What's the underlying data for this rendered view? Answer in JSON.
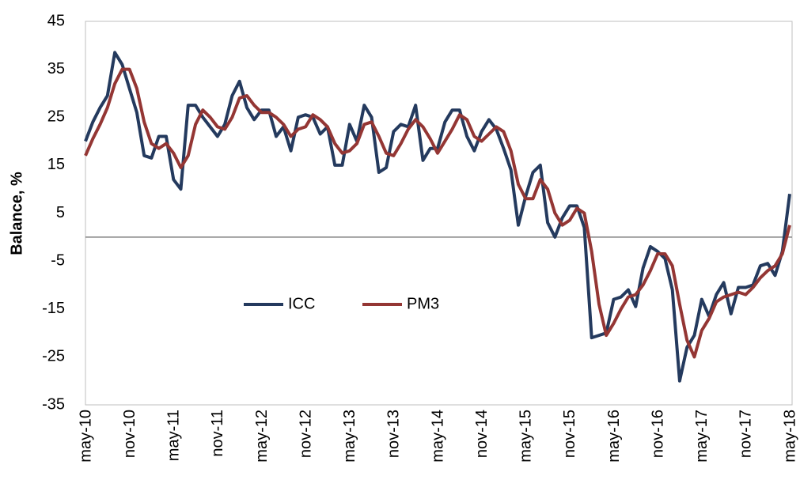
{
  "chart_data": {
    "type": "line",
    "y_label": "Balance, %",
    "categories": [
      "may-10",
      null,
      null,
      null,
      null,
      null,
      "nov-10",
      null,
      null,
      null,
      null,
      null,
      "may-11",
      null,
      null,
      null,
      null,
      null,
      "nov-11",
      null,
      null,
      null,
      null,
      null,
      "may-12",
      null,
      null,
      null,
      null,
      null,
      "nov-12",
      null,
      null,
      null,
      null,
      null,
      "may-13",
      null,
      null,
      null,
      null,
      null,
      "nov-13",
      null,
      null,
      null,
      null,
      null,
      "may-14",
      null,
      null,
      null,
      null,
      null,
      "nov-14",
      null,
      null,
      null,
      null,
      null,
      "may-15",
      null,
      null,
      null,
      null,
      null,
      "nov-15",
      null,
      null,
      null,
      null,
      null,
      "may-16",
      null,
      null,
      null,
      null,
      null,
      "nov-16",
      null,
      null,
      null,
      null,
      null,
      "may-17",
      null,
      null,
      null,
      null,
      null,
      "nov-17",
      null,
      null,
      null,
      null,
      null,
      "may-18"
    ],
    "series": [
      {
        "name": "ICC",
        "color": "#243a5e",
        "values": [
          20,
          24,
          27,
          29.5,
          38.5,
          36,
          31,
          26,
          17,
          16.5,
          21,
          21,
          12,
          10,
          27.5,
          27.5,
          25,
          23,
          21,
          23.5,
          29.5,
          32.5,
          27,
          24.5,
          26.5,
          26.5,
          21,
          23,
          18,
          25,
          25.5,
          25,
          21.5,
          23,
          15,
          15,
          23.5,
          20,
          27.5,
          25,
          13.5,
          14.5,
          22,
          23.5,
          23,
          27.5,
          16,
          18.5,
          18.5,
          24,
          26.5,
          26.5,
          21,
          18,
          22,
          24.5,
          22.5,
          18.5,
          14,
          2.5,
          8.5,
          13.5,
          15,
          3,
          0,
          4,
          6.5,
          6.5,
          2,
          -21,
          -20.5,
          -20,
          -13,
          -12.5,
          -11,
          -14.5,
          -6.5,
          -2,
          -3,
          -4.5,
          -11,
          -30,
          -23,
          -20.5,
          -13,
          -16.5,
          -12,
          -9.5,
          -16,
          -10.5,
          -10.5,
          -10,
          -6,
          -5.5,
          -8,
          -3,
          9
        ]
      },
      {
        "name": "PM3",
        "color": "#943634",
        "values": [
          17,
          20.5,
          23.5,
          27,
          32,
          35,
          35,
          31,
          24,
          19.5,
          18.5,
          19.5,
          17.5,
          14.5,
          17,
          23.5,
          26.5,
          25,
          23,
          22.5,
          25,
          29,
          29.5,
          27.5,
          26,
          26,
          25,
          23.5,
          21,
          22.5,
          23,
          25.5,
          24.5,
          23,
          19.5,
          17.5,
          18,
          19.5,
          23.5,
          24,
          21,
          17.5,
          17,
          19.5,
          22.5,
          24.5,
          23,
          20.5,
          17.5,
          20,
          22.5,
          25.5,
          24.5,
          21,
          20,
          21.5,
          23,
          22,
          18,
          11,
          8,
          8,
          12,
          10,
          5,
          2.5,
          3.5,
          6,
          5,
          -3,
          -14,
          -20.5,
          -18,
          -15,
          -12.5,
          -12,
          -10,
          -7,
          -3.5,
          -3.5,
          -6,
          -14,
          -21.5,
          -25,
          -19.5,
          -17,
          -13.5,
          -12.5,
          -12,
          -11.5,
          -12,
          -10.5,
          -8.5,
          -7,
          -6,
          -3.5,
          2.5
        ]
      }
    ],
    "ylim": [
      -35,
      45
    ],
    "yticks": [
      -35,
      -25,
      -15,
      -5,
      5,
      15,
      25,
      35,
      45
    ],
    "grid": false,
    "legend": "center-left"
  }
}
